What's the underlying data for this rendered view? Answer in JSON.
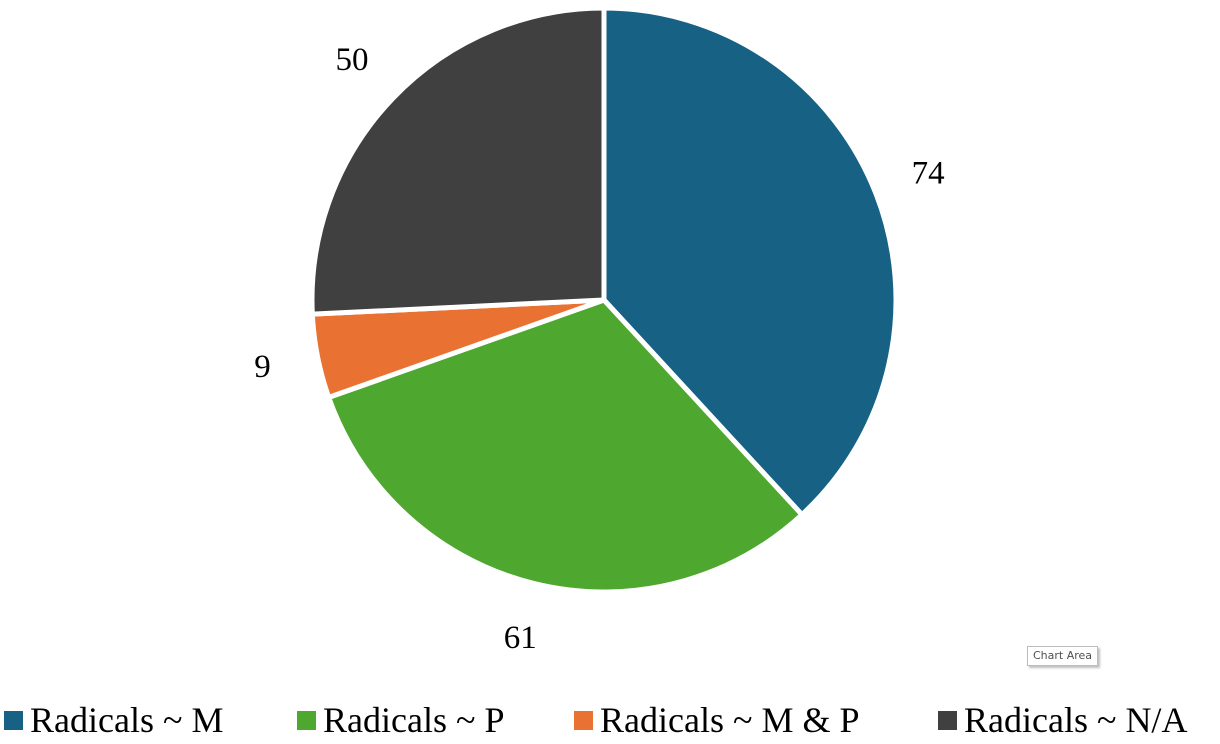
{
  "chart_data": {
    "type": "pie",
    "categories": [
      "Radicals ~ M",
      "Radicals ~ P",
      "Radicals ~ M & P",
      "Radicals ~ N/A"
    ],
    "values": [
      74,
      61,
      9,
      50
    ],
    "data_labels": [
      "74",
      "61",
      "9",
      "50"
    ],
    "colors": [
      "#176184",
      "#4ea72e",
      "#e97132",
      "#404040"
    ],
    "title": "",
    "legend_position": "bottom",
    "start_angle": "12 o'clock, clockwise"
  },
  "tooltip": {
    "text": "Chart Area"
  }
}
